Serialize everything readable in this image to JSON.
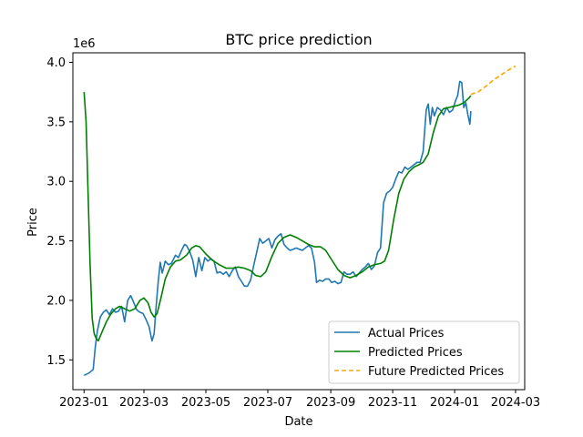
{
  "chart_data": {
    "type": "line",
    "title": "BTC price prediction",
    "xlabel": "Date",
    "ylabel": "Price",
    "y_offset_label": "1e6",
    "xlim": [
      "2022-12-21",
      "2024-03-10"
    ],
    "ylim": [
      1.25,
      4.08
    ],
    "x_ticks": [
      "2023-01",
      "2023-03",
      "2023-05",
      "2023-07",
      "2023-09",
      "2023-11",
      "2024-01",
      "2024-03"
    ],
    "y_ticks": [
      "1.5",
      "2.0",
      "2.5",
      "3.0",
      "3.5",
      "4.0"
    ],
    "grid": false,
    "legend_position": "lower-right",
    "series": [
      {
        "name": "Actual Prices",
        "color": "#1f77b4",
        "style": "solid",
        "x": [
          "2023-01-01",
          "2023-01-06",
          "2023-01-10",
          "2023-01-12",
          "2023-01-14",
          "2023-01-17",
          "2023-01-20",
          "2023-01-23",
          "2023-01-26",
          "2023-01-29",
          "2023-02-01",
          "2023-02-04",
          "2023-02-07",
          "2023-02-10",
          "2023-02-13",
          "2023-02-16",
          "2023-02-19",
          "2023-02-22",
          "2023-02-25",
          "2023-02-28",
          "2023-03-03",
          "2023-03-06",
          "2023-03-09",
          "2023-03-11",
          "2023-03-13",
          "2023-03-15",
          "2023-03-17",
          "2023-03-19",
          "2023-03-22",
          "2023-03-25",
          "2023-03-28",
          "2023-04-01",
          "2023-04-04",
          "2023-04-07",
          "2023-04-10",
          "2023-04-12",
          "2023-04-15",
          "2023-04-18",
          "2023-04-21",
          "2023-04-24",
          "2023-04-27",
          "2023-04-30",
          "2023-05-03",
          "2023-05-06",
          "2023-05-09",
          "2023-05-12",
          "2023-05-15",
          "2023-05-18",
          "2023-05-21",
          "2023-05-24",
          "2023-05-27",
          "2023-05-30",
          "2023-06-02",
          "2023-06-05",
          "2023-06-08",
          "2023-06-11",
          "2023-06-14",
          "2023-06-17",
          "2023-06-20",
          "2023-06-23",
          "2023-06-26",
          "2023-06-29",
          "2023-07-02",
          "2023-07-05",
          "2023-07-08",
          "2023-07-11",
          "2023-07-14",
          "2023-07-17",
          "2023-07-20",
          "2023-07-23",
          "2023-07-26",
          "2023-07-29",
          "2023-08-01",
          "2023-08-04",
          "2023-08-07",
          "2023-08-10",
          "2023-08-13",
          "2023-08-16",
          "2023-08-18",
          "2023-08-21",
          "2023-08-24",
          "2023-08-27",
          "2023-08-30",
          "2023-09-02",
          "2023-09-05",
          "2023-09-08",
          "2023-09-11",
          "2023-09-14",
          "2023-09-17",
          "2023-09-20",
          "2023-09-23",
          "2023-09-26",
          "2023-09-29",
          "2023-10-02",
          "2023-10-05",
          "2023-10-08",
          "2023-10-11",
          "2023-10-14",
          "2023-10-17",
          "2023-10-20",
          "2023-10-23",
          "2023-10-26",
          "2023-10-29",
          "2023-11-01",
          "2023-11-04",
          "2023-11-07",
          "2023-11-10",
          "2023-11-13",
          "2023-11-16",
          "2023-11-19",
          "2023-11-22",
          "2023-11-25",
          "2023-11-28",
          "2023-12-01",
          "2023-12-04",
          "2023-12-06",
          "2023-12-08",
          "2023-12-10",
          "2023-12-12",
          "2023-12-15",
          "2023-12-18",
          "2023-12-21",
          "2023-12-24",
          "2023-12-27",
          "2023-12-30",
          "2024-01-02",
          "2024-01-04",
          "2024-01-06",
          "2024-01-08",
          "2024-01-10",
          "2024-01-12",
          "2024-01-14",
          "2024-01-16",
          "2024-01-17"
        ],
        "y": [
          1.37,
          1.39,
          1.42,
          1.6,
          1.74,
          1.86,
          1.9,
          1.92,
          1.88,
          1.93,
          1.9,
          1.91,
          1.95,
          1.82,
          2.0,
          2.04,
          1.98,
          1.92,
          1.9,
          1.89,
          1.84,
          1.78,
          1.66,
          1.72,
          1.95,
          2.15,
          2.32,
          2.23,
          2.33,
          2.3,
          2.31,
          2.38,
          2.36,
          2.42,
          2.47,
          2.46,
          2.41,
          2.34,
          2.2,
          2.36,
          2.25,
          2.36,
          2.33,
          2.35,
          2.33,
          2.23,
          2.24,
          2.22,
          2.24,
          2.2,
          2.25,
          2.28,
          2.2,
          2.16,
          2.12,
          2.12,
          2.17,
          2.29,
          2.4,
          2.52,
          2.48,
          2.5,
          2.52,
          2.44,
          2.51,
          2.54,
          2.56,
          2.47,
          2.44,
          2.42,
          2.43,
          2.44,
          2.43,
          2.42,
          2.44,
          2.46,
          2.44,
          2.32,
          2.15,
          2.17,
          2.16,
          2.18,
          2.18,
          2.15,
          2.16,
          2.14,
          2.15,
          2.24,
          2.22,
          2.22,
          2.24,
          2.2,
          2.23,
          2.26,
          2.28,
          2.31,
          2.26,
          2.29,
          2.4,
          2.44,
          2.82,
          2.9,
          2.92,
          2.95,
          3.02,
          3.08,
          3.07,
          3.12,
          3.1,
          3.12,
          3.14,
          3.16,
          3.16,
          3.25,
          3.6,
          3.65,
          3.48,
          3.62,
          3.55,
          3.62,
          3.6,
          3.56,
          3.62,
          3.58,
          3.6,
          3.68,
          3.72,
          3.84,
          3.83,
          3.62,
          3.66,
          3.56,
          3.48,
          3.59
        ],
        "note_color": "#1f77b4"
      },
      {
        "name": "Predicted Prices",
        "color": "#008000",
        "style": "solid",
        "x": [
          "2023-01-01",
          "2023-01-03",
          "2023-01-05",
          "2023-01-07",
          "2023-01-09",
          "2023-01-11",
          "2023-01-13",
          "2023-01-15",
          "2023-01-17",
          "2023-01-20",
          "2023-01-23",
          "2023-01-27",
          "2023-02-01",
          "2023-02-05",
          "2023-02-10",
          "2023-02-15",
          "2023-02-20",
          "2023-02-25",
          "2023-03-01",
          "2023-03-05",
          "2023-03-08",
          "2023-03-11",
          "2023-03-14",
          "2023-03-18",
          "2023-03-22",
          "2023-03-27",
          "2023-04-01",
          "2023-04-06",
          "2023-04-12",
          "2023-04-17",
          "2023-04-21",
          "2023-04-25",
          "2023-05-01",
          "2023-05-07",
          "2023-05-14",
          "2023-05-21",
          "2023-05-27",
          "2023-06-02",
          "2023-06-08",
          "2023-06-14",
          "2023-06-19",
          "2023-06-24",
          "2023-06-29",
          "2023-07-05",
          "2023-07-11",
          "2023-07-17",
          "2023-07-23",
          "2023-07-29",
          "2023-08-04",
          "2023-08-10",
          "2023-08-16",
          "2023-08-22",
          "2023-08-27",
          "2023-09-02",
          "2023-09-08",
          "2023-09-14",
          "2023-09-20",
          "2023-09-26",
          "2023-10-02",
          "2023-10-08",
          "2023-10-14",
          "2023-10-20",
          "2023-10-24",
          "2023-10-28",
          "2023-11-02",
          "2023-11-07",
          "2023-11-12",
          "2023-11-17",
          "2023-11-22",
          "2023-11-27",
          "2023-12-01",
          "2023-12-06",
          "2023-12-11",
          "2023-12-16",
          "2023-12-21",
          "2023-12-26",
          "2023-12-31",
          "2024-01-05",
          "2024-01-10",
          "2024-01-15",
          "2024-01-17"
        ],
        "y": [
          3.75,
          3.5,
          2.9,
          2.3,
          1.85,
          1.72,
          1.68,
          1.66,
          1.7,
          1.76,
          1.82,
          1.88,
          1.93,
          1.95,
          1.93,
          1.91,
          1.93,
          2.0,
          2.02,
          1.98,
          1.9,
          1.86,
          1.89,
          2.03,
          2.18,
          2.28,
          2.33,
          2.34,
          2.38,
          2.44,
          2.46,
          2.45,
          2.39,
          2.34,
          2.3,
          2.27,
          2.27,
          2.28,
          2.27,
          2.25,
          2.21,
          2.2,
          2.24,
          2.37,
          2.48,
          2.53,
          2.55,
          2.53,
          2.5,
          2.47,
          2.45,
          2.45,
          2.42,
          2.34,
          2.26,
          2.21,
          2.19,
          2.21,
          2.24,
          2.28,
          2.3,
          2.31,
          2.33,
          2.42,
          2.68,
          2.9,
          3.02,
          3.08,
          3.12,
          3.14,
          3.16,
          3.23,
          3.41,
          3.55,
          3.61,
          3.62,
          3.63,
          3.64,
          3.66,
          3.7,
          3.72
        ]
      },
      {
        "name": "Future Predicted Prices",
        "color": "#ffa500",
        "style": "dashed",
        "x": [
          "2024-01-17",
          "2024-01-20",
          "2024-01-24",
          "2024-02-01",
          "2024-02-08",
          "2024-02-15",
          "2024-02-22",
          "2024-03-01"
        ],
        "y": [
          3.73,
          3.74,
          3.75,
          3.8,
          3.85,
          3.89,
          3.93,
          3.97
        ]
      }
    ]
  }
}
